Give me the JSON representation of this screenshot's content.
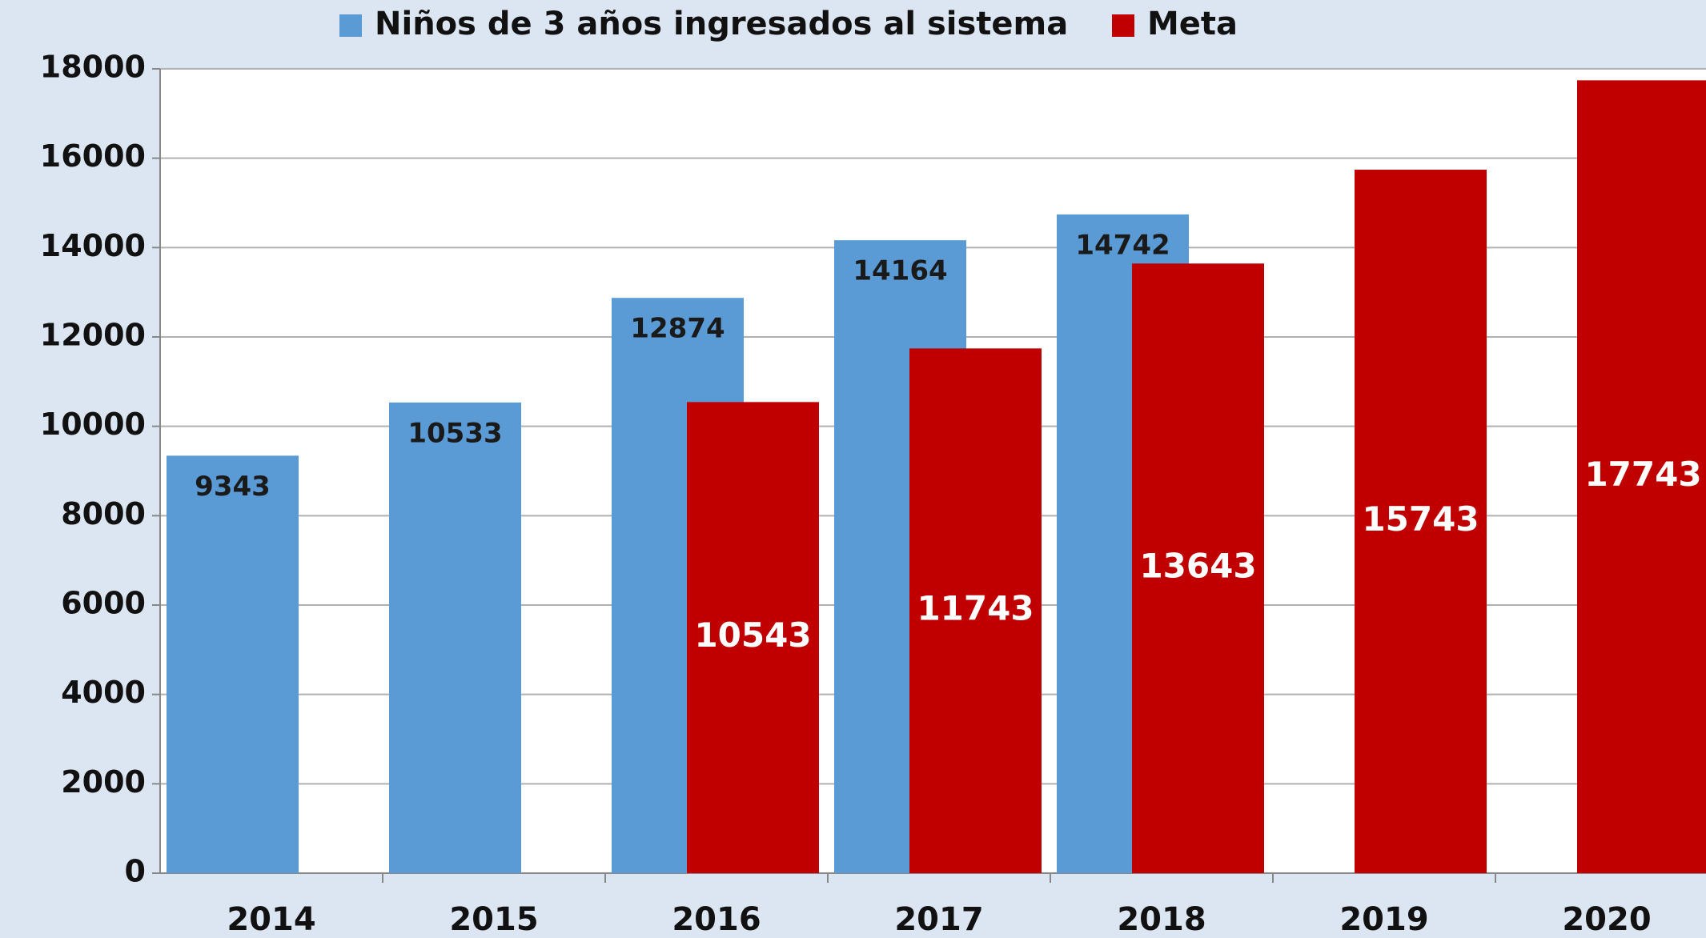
{
  "chart_data": {
    "type": "bar",
    "categories": [
      "2014",
      "2015",
      "2016",
      "2017",
      "2018",
      "2019",
      "2020"
    ],
    "series": [
      {
        "name": "Niños de 3 años ingresados al sistema",
        "color": "#5b9bd5",
        "values": [
          9343,
          10533,
          12874,
          14164,
          14742,
          null,
          null
        ]
      },
      {
        "name": "Meta",
        "color": "#c00000",
        "values": [
          null,
          null,
          10543,
          11743,
          13643,
          15743,
          17743
        ]
      }
    ],
    "ylim": [
      0,
      18000
    ],
    "yticks": [
      0,
      2000,
      4000,
      6000,
      8000,
      10000,
      12000,
      14000,
      16000,
      18000
    ],
    "grid": true,
    "legend": "top"
  }
}
